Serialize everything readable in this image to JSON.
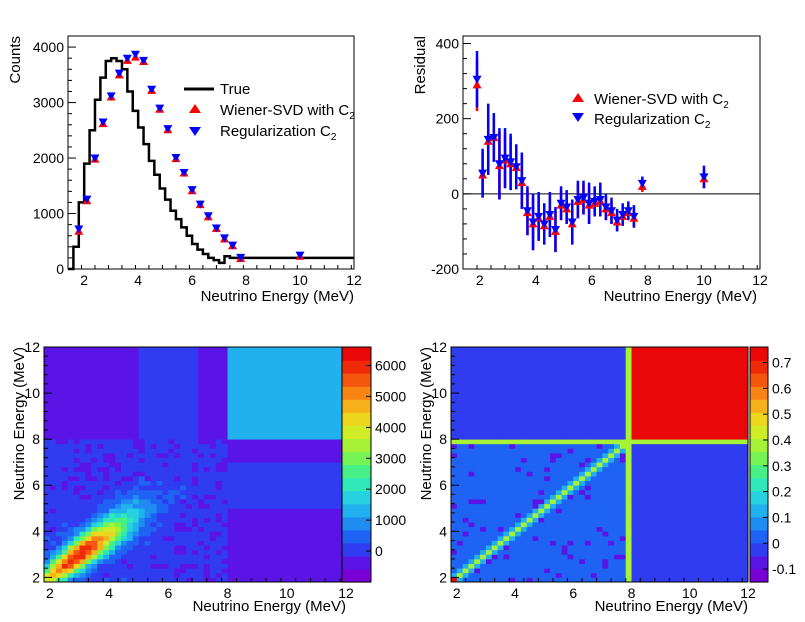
{
  "chart_data": [
    {
      "type": "line",
      "title": "",
      "xlabel": "Neutrino Energy (MeV)",
      "ylabel": "Counts",
      "xlim": [
        1.4,
        12
      ],
      "ylim": [
        0,
        4200
      ],
      "xticks": [
        2,
        4,
        6,
        8,
        10,
        12
      ],
      "yticks": [
        0,
        1000,
        2000,
        3000,
        4000
      ],
      "legend": [
        {
          "label": "True",
          "marker": "line",
          "color": "#000000"
        },
        {
          "label": "Wiener-SVD with C",
          "sub": "2",
          "marker": "triangle-up",
          "color": "#ff0000"
        },
        {
          "label": "Regularization C",
          "sub": "2",
          "marker": "triangle-down",
          "color": "#0000ff"
        }
      ],
      "series": [
        {
          "name": "True",
          "edges": [
            1.4,
            1.6,
            1.8,
            2.0,
            2.2,
            2.4,
            2.6,
            2.8,
            3.0,
            3.2,
            3.4,
            3.6,
            3.8,
            4.0,
            4.2,
            4.4,
            4.6,
            4.8,
            5.0,
            5.2,
            5.4,
            5.6,
            5.8,
            6.0,
            6.2,
            6.4,
            6.6,
            6.8,
            7.0,
            7.2,
            7.4,
            7.6,
            8.0,
            12.0
          ],
          "values": [
            0,
            400,
            1200,
            1900,
            2500,
            3050,
            3450,
            3750,
            3800,
            3750,
            3600,
            3200,
            2850,
            2550,
            2250,
            1950,
            1700,
            1450,
            1250,
            1050,
            900,
            750,
            600,
            450,
            350,
            270,
            200,
            160,
            110,
            230,
            200,
            200,
            200
          ]
        },
        {
          "name": "Wiener-SVD with C2",
          "color": "#ff0000",
          "x": [
            1.8,
            2.1,
            2.4,
            2.7,
            3.0,
            3.3,
            3.6,
            3.9,
            4.2,
            4.5,
            4.8,
            5.1,
            5.4,
            5.7,
            6.0,
            6.3,
            6.6,
            6.9,
            7.2,
            7.5,
            7.8,
            10.0
          ],
          "values": [
            680,
            1230,
            1980,
            2620,
            3100,
            3500,
            3760,
            3820,
            3740,
            3220,
            2880,
            2510,
            1990,
            1730,
            1410,
            1160,
            940,
            730,
            540,
            420,
            190,
            230
          ]
        },
        {
          "name": "Regularization C2",
          "color": "#0000ff",
          "x": [
            1.8,
            2.1,
            2.4,
            2.7,
            3.0,
            3.3,
            3.6,
            3.9,
            4.2,
            4.5,
            4.8,
            5.1,
            5.4,
            5.7,
            6.0,
            6.3,
            6.6,
            6.9,
            7.2,
            7.5,
            7.8,
            10.0
          ],
          "values": [
            720,
            1260,
            2000,
            2650,
            3120,
            3530,
            3800,
            3870,
            3760,
            3240,
            2900,
            2530,
            2010,
            1740,
            1430,
            1170,
            960,
            740,
            560,
            430,
            210,
            250
          ]
        }
      ]
    },
    {
      "type": "scatter",
      "title": "",
      "xlabel": "Neutrino Energy (MeV)",
      "ylabel": "Residual",
      "xlim": [
        1.4,
        12
      ],
      "ylim": [
        -200,
        420
      ],
      "xticks": [
        2,
        4,
        6,
        8,
        10,
        12
      ],
      "yticks": [
        -200,
        0,
        200,
        400
      ],
      "legend": [
        {
          "label": "Wiener-SVD with C",
          "sub": "2",
          "marker": "triangle-up",
          "color": "#ff0000"
        },
        {
          "label": "Regularization C",
          "sub": "2",
          "marker": "triangle-down",
          "color": "#0000ff"
        }
      ],
      "series": [
        {
          "name": "Wiener-SVD with C2",
          "color": "#ff0000",
          "x": [
            1.9,
            2.1,
            2.3,
            2.5,
            2.7,
            2.9,
            3.1,
            3.3,
            3.5,
            3.7,
            3.9,
            4.1,
            4.3,
            4.5,
            4.7,
            4.9,
            5.1,
            5.3,
            5.5,
            5.7,
            5.9,
            6.1,
            6.3,
            6.5,
            6.7,
            6.9,
            7.1,
            7.3,
            7.5,
            7.8,
            10.0
          ],
          "values": [
            290,
            50,
            140,
            150,
            75,
            90,
            80,
            70,
            30,
            -50,
            -80,
            -65,
            -85,
            -60,
            -100,
            -30,
            -40,
            -80,
            -20,
            -15,
            -30,
            -25,
            -20,
            -40,
            -50,
            -75,
            -60,
            -50,
            -65,
            20,
            40
          ],
          "err": [
            70,
            60,
            90,
            60,
            90,
            75,
            70,
            55,
            70,
            60,
            70,
            60,
            50,
            55,
            55,
            40,
            40,
            55,
            45,
            40,
            50,
            35,
            40,
            30,
            30,
            25,
            25,
            20,
            25,
            15,
            25
          ]
        },
        {
          "name": "Regularization C2",
          "color": "#0000ff",
          "x": [
            1.9,
            2.1,
            2.3,
            2.5,
            2.7,
            2.9,
            3.1,
            3.3,
            3.5,
            3.7,
            3.9,
            4.1,
            4.3,
            4.5,
            4.7,
            4.9,
            5.1,
            5.3,
            5.5,
            5.7,
            5.9,
            6.1,
            6.3,
            6.5,
            6.7,
            6.9,
            7.1,
            7.3,
            7.5,
            7.8,
            10.0
          ],
          "values": [
            305,
            55,
            145,
            150,
            80,
            95,
            85,
            72,
            35,
            -45,
            -75,
            -60,
            -80,
            -55,
            -95,
            -25,
            -35,
            -75,
            -15,
            -10,
            -25,
            -20,
            -15,
            -35,
            -45,
            -70,
            -55,
            -45,
            -60,
            28,
            45
          ],
          "err": [
            75,
            65,
            95,
            65,
            95,
            80,
            75,
            60,
            75,
            65,
            75,
            65,
            55,
            60,
            60,
            45,
            45,
            60,
            50,
            45,
            55,
            40,
            45,
            35,
            35,
            30,
            30,
            25,
            30,
            18,
            30
          ]
        }
      ]
    },
    {
      "type": "heatmap",
      "title": "",
      "xlabel": "Neutrino Energy (MeV)",
      "ylabel": "Neutrino Energy (MeV)",
      "xlim": [
        1.8,
        12
      ],
      "ylim": [
        1.8,
        12
      ],
      "xticks": [
        2,
        4,
        6,
        8,
        10,
        12
      ],
      "yticks": [
        2,
        4,
        6,
        8,
        10,
        12
      ],
      "zlim": [
        -1000,
        6600
      ],
      "colorbar_ticks": [
        0,
        1000,
        2000,
        3000,
        4000,
        5000,
        6000
      ],
      "pattern": "covariance: peak 6000 near (3,3) along the diagonal, decreasing with energy; off-diagonal spread; region above 8 MeV uniform at about 1300"
    },
    {
      "type": "heatmap",
      "title": "",
      "xlabel": "Neutrino Energy (MeV)",
      "ylabel": "Neutrino Energy (MeV)",
      "xlim": [
        1.8,
        12
      ],
      "ylim": [
        1.8,
        12
      ],
      "xticks": [
        2,
        4,
        6,
        8,
        10,
        12
      ],
      "yticks": [
        2,
        4,
        6,
        8,
        10,
        12
      ],
      "zlim": [
        -0.15,
        0.76
      ],
      "colorbar_ticks": [
        -0.1,
        0,
        0.1,
        0.2,
        0.3,
        0.4,
        0.5,
        0.6,
        0.7
      ],
      "pattern": "smearing matrix: narrow diagonal about 0.35 with 0.7 at the first bin; region above 8 MeV at 0.75; row/column 8 at about 0.35"
    }
  ]
}
